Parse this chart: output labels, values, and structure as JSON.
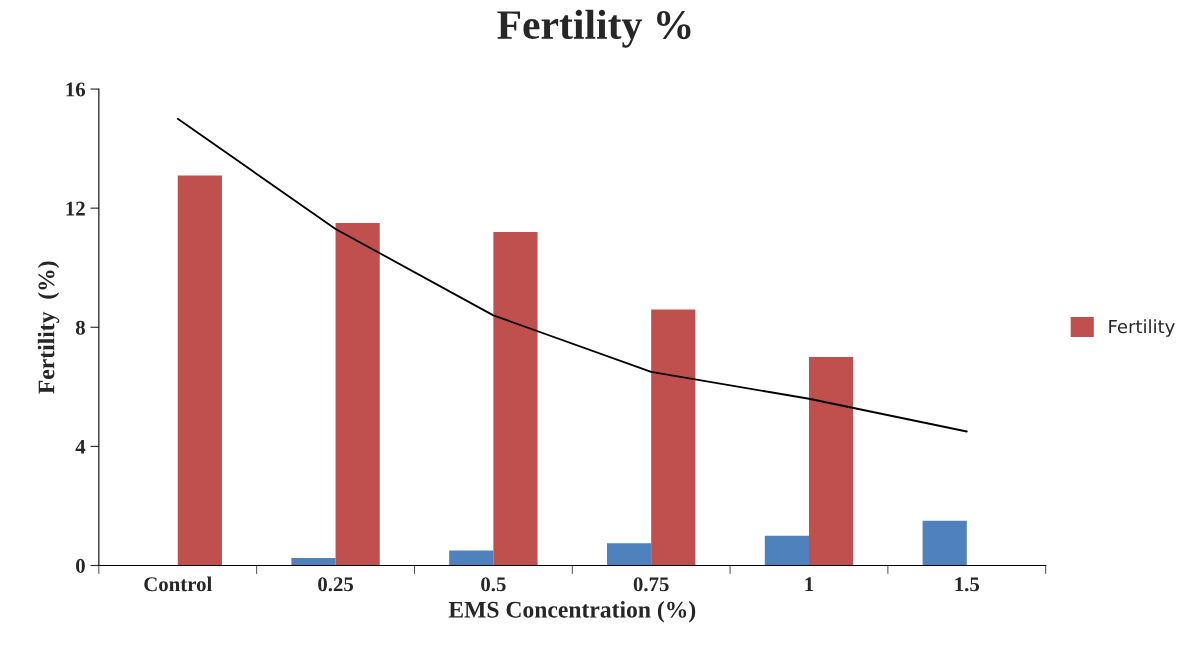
{
  "chart_data": {
    "type": "bar",
    "title": "Fertility %",
    "xlabel": "EMS Concentration (%)",
    "ylabel": "Fertility  (%)",
    "categories": [
      "Control",
      "0.25",
      "0.5",
      "0.75",
      "1",
      "1.5"
    ],
    "series": [
      {
        "color": "#4f81bd",
        "values": [
          0,
          0.25,
          0.5,
          0.75,
          1,
          1.5
        ]
      },
      {
        "name": "Fertility",
        "color": "#c0504d",
        "values": [
          13.1,
          11.5,
          11.2,
          8.6,
          7.0,
          null
        ]
      },
      {
        "type": "line",
        "color": "#000000",
        "values": [
          15.0,
          11.3,
          8.4,
          6.5,
          5.6,
          4.5
        ]
      }
    ],
    "ylim": [
      0,
      16
    ],
    "yticks": [
      0,
      4,
      8,
      12,
      16
    ],
    "legend": "right",
    "grid": false
  }
}
